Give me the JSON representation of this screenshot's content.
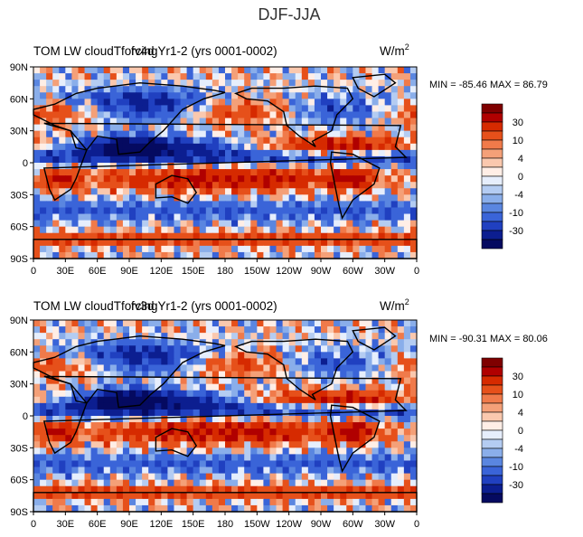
{
  "figure_title": "DJF-JJA",
  "colorbar": {
    "levels": [
      "30",
      "10",
      "4",
      "0",
      "-4",
      "-10",
      "-30"
    ],
    "colors": [
      "#7f0000",
      "#b00000",
      "#d62a00",
      "#e6501a",
      "#f07a4a",
      "#f4a078",
      "#fac8ae",
      "#ffeee6",
      "#e6eefc",
      "#b4ccf2",
      "#8aaeea",
      "#5a86e0",
      "#3a64d8",
      "#2040c0",
      "#0c1e90",
      "#050a60"
    ]
  },
  "panels": [
    {
      "title_left": "TOM LW cloudTforcingYr1-2 (yrs 0001-0002)",
      "title_overlap": "fv4d",
      "units_base": "W/m",
      "units_sup": "2",
      "stats": "MIN = -85.46 MAX =  86.79"
    },
    {
      "title_left": "TOM LW cloudTforcingYr1-2 (yrs 0001-0002)",
      "title_overlap": "fv3d",
      "units_base": "W/m",
      "units_sup": "2",
      "stats": "MIN = -90.31 MAX =  80.06"
    }
  ],
  "chart_data": [
    {
      "type": "heatmap",
      "title": "TOM LW cloudTforcingYr1-2 (yrs 0001-0002)",
      "variable": "DJF-JJA",
      "units": "W/m2",
      "min": -85.46,
      "max": 86.79,
      "x_ticks": [
        "0",
        "30E",
        "60E",
        "90E",
        "120E",
        "150E",
        "180",
        "150W",
        "120W",
        "90W",
        "60W",
        "30W",
        "0"
      ],
      "y_ticks": [
        "90N",
        "60N",
        "30N",
        "0",
        "30S",
        "60S",
        "90S"
      ],
      "xlim": [
        0,
        360
      ],
      "ylim": [
        -90,
        90
      ],
      "contour_levels": [
        -30,
        -10,
        -4,
        0,
        4,
        10,
        30
      ]
    },
    {
      "type": "heatmap",
      "title": "TOM LW cloudTforcingYr1-2 (yrs 0001-0002)",
      "variable": "DJF-JJA",
      "units": "W/m2",
      "min": -90.31,
      "max": 80.06,
      "x_ticks": [
        "0",
        "30E",
        "60E",
        "90E",
        "120E",
        "150E",
        "180",
        "150W",
        "120W",
        "90W",
        "60W",
        "30W",
        "0"
      ],
      "y_ticks": [
        "90N",
        "60N",
        "30N",
        "0",
        "30S",
        "60S",
        "90S"
      ],
      "xlim": [
        0,
        360
      ],
      "ylim": [
        -90,
        90
      ],
      "contour_levels": [
        -30,
        -10,
        -4,
        0,
        4,
        10,
        30
      ]
    }
  ]
}
